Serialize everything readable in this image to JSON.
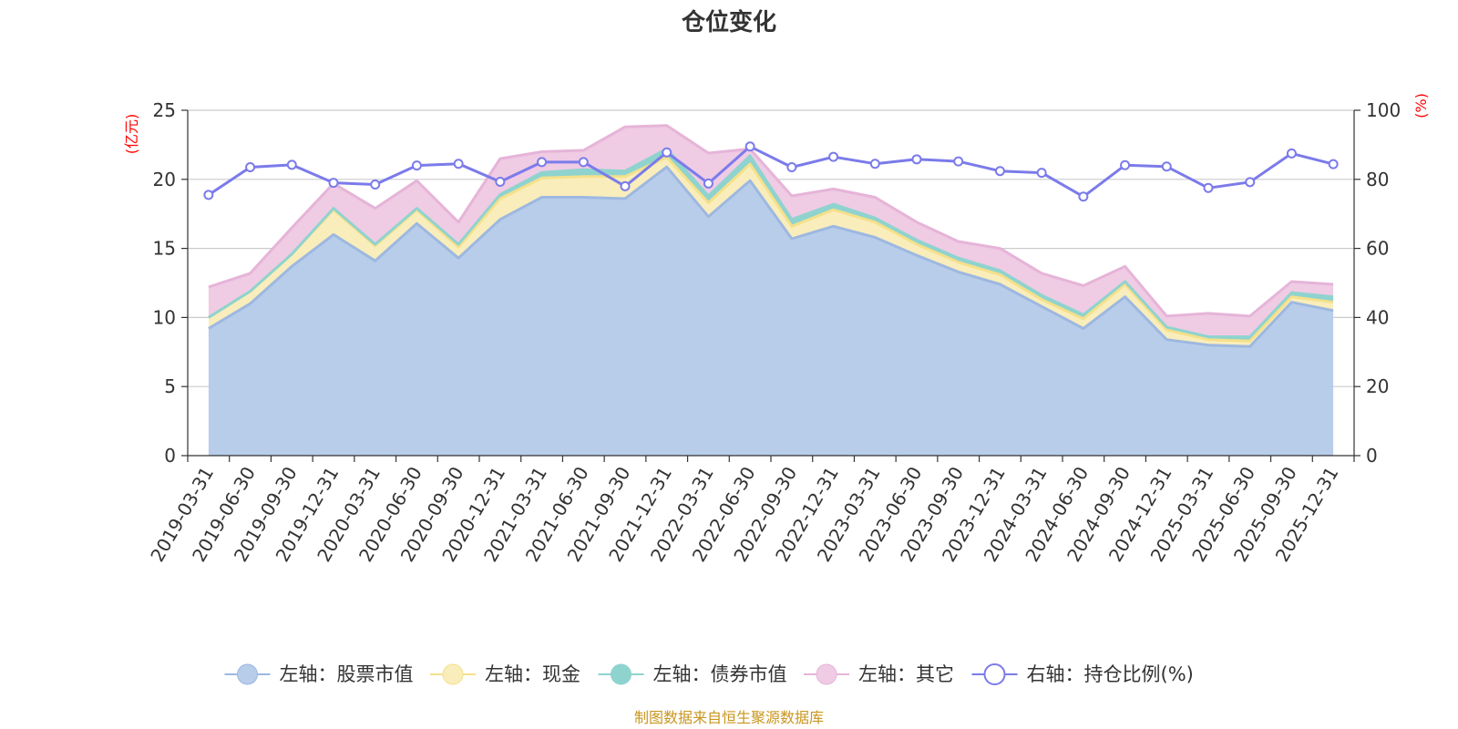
{
  "chart_data": {
    "type": "area",
    "title": "仓位变化",
    "left_unit": "(亿元)",
    "right_unit": "(%)",
    "source_note": "制图数据来自恒生聚源数据库",
    "left_axis": {
      "min": 0,
      "max": 25,
      "ticks": [
        "0",
        "5",
        "10",
        "15",
        "20",
        "25"
      ]
    },
    "right_axis": {
      "min": 0,
      "max": 100,
      "ticks": [
        "0",
        "20",
        "40",
        "60",
        "80",
        "100"
      ]
    },
    "categories": [
      "2019-03-31",
      "2019-06-30",
      "2019-09-30",
      "2019-12-31",
      "2020-03-31",
      "2020-06-30",
      "2020-09-30",
      "2020-12-31",
      "2021-03-31",
      "2021-06-30",
      "2021-09-30",
      "2021-12-31",
      "2022-03-31",
      "2022-06-30",
      "2022-09-30",
      "2022-12-31",
      "2023-03-31",
      "2023-06-30",
      "2023-09-30",
      "2023-12-31",
      "2024-03-31",
      "2024-06-30",
      "2024-09-30",
      "2024-12-31",
      "2025-03-31",
      "2025-06-30",
      "2025-09-30",
      "2025-12-31"
    ],
    "series": [
      {
        "name": "左轴：股票市值",
        "axis": "left",
        "color": "#9db8e0",
        "fill": "#b8cdea",
        "values": [
          9.2,
          11.0,
          13.7,
          16.0,
          14.1,
          16.8,
          14.3,
          17.1,
          18.7,
          18.7,
          18.6,
          20.9,
          17.3,
          19.9,
          15.7,
          16.6,
          15.8,
          14.5,
          13.3,
          12.4,
          10.8,
          9.2,
          11.5,
          8.4,
          8.0,
          7.9,
          11.1,
          10.5
        ]
      },
      {
        "name": "左轴：现金",
        "axis": "left",
        "color": "#f5e08a",
        "fill": "#f9edbb",
        "values": [
          0.8,
          0.9,
          0.9,
          1.8,
          1.1,
          1.0,
          0.8,
          1.5,
          1.4,
          1.5,
          1.6,
          0.7,
          1.0,
          1.2,
          0.9,
          1.2,
          1.1,
          0.8,
          0.7,
          0.7,
          0.5,
          0.7,
          0.9,
          0.7,
          0.4,
          0.4,
          0.4,
          0.6
        ]
      },
      {
        "name": "左轴：债券市值",
        "axis": "left",
        "color": "#8fd3cf",
        "fill": "#8fd3cf",
        "values": [
          0.0,
          0.0,
          0.0,
          0.1,
          0.1,
          0.1,
          0.2,
          0.3,
          0.4,
          0.5,
          0.4,
          0.6,
          0.5,
          0.6,
          0.5,
          0.4,
          0.3,
          0.3,
          0.3,
          0.3,
          0.3,
          0.3,
          0.2,
          0.2,
          0.2,
          0.3,
          0.3,
          0.4
        ]
      },
      {
        "name": "左轴：其它",
        "axis": "left",
        "color": "#e6b4d8",
        "fill": "#efcbe4",
        "values": [
          2.2,
          1.3,
          1.9,
          1.8,
          2.6,
          2.0,
          1.6,
          2.6,
          1.5,
          1.4,
          3.2,
          1.7,
          3.1,
          0.5,
          1.7,
          1.1,
          1.5,
          1.3,
          1.2,
          1.6,
          1.6,
          2.1,
          1.1,
          0.8,
          1.7,
          1.5,
          0.8,
          0.9
        ]
      },
      {
        "name": "右轴：持仓比例(%)",
        "axis": "right",
        "color": "#7b7bea",
        "values": [
          75.5,
          83.5,
          84.2,
          79.0,
          78.5,
          84.0,
          84.5,
          79.3,
          85.0,
          85.0,
          78.0,
          87.8,
          78.8,
          89.5,
          83.5,
          86.5,
          84.5,
          85.8,
          85.2,
          82.4,
          81.9,
          75.0,
          84.1,
          83.7,
          77.5,
          79.2,
          87.5,
          84.4
        ]
      }
    ]
  }
}
